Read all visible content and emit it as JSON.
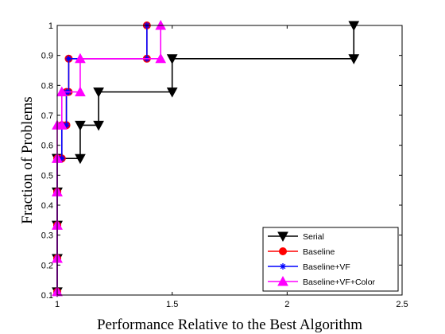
{
  "chart_data": {
    "type": "line",
    "title": "",
    "xlabel": "Performance Relative to the Best Algorithm",
    "ylabel": "Fraction of Problems",
    "xlim": [
      1,
      2.5
    ],
    "ylim": [
      0.1,
      1
    ],
    "xticks": [
      1,
      1.5,
      2,
      2.5
    ],
    "xtick_labels": [
      "1",
      "1.5",
      "2",
      "2.5"
    ],
    "yticks": [
      0.1,
      0.2,
      0.3,
      0.4,
      0.5,
      0.6,
      0.7,
      0.8,
      0.9,
      1
    ],
    "ytick_labels": [
      "0.1",
      "0.2",
      "0.3",
      "0.4",
      "0.5",
      "0.6",
      "0.7",
      "0.8",
      "0.9",
      "1"
    ],
    "grid": false,
    "legend_position": "bottom-right",
    "series": [
      {
        "name": "Serial",
        "color": "#000000",
        "marker": "triangle-down",
        "x": [
          1.0,
          1.0,
          1.0,
          1.0,
          1.0,
          1.0,
          1.0,
          1.0,
          1.0,
          1.0,
          1.1,
          1.1,
          1.18,
          1.18,
          1.5,
          1.5,
          2.29,
          2.29
        ],
        "y": [
          0.111,
          0.222,
          0.222,
          0.333,
          0.333,
          0.444,
          0.444,
          0.556,
          0.556,
          0.556,
          0.556,
          0.667,
          0.667,
          0.778,
          0.778,
          0.889,
          0.889,
          1.0
        ]
      },
      {
        "name": "Baseline",
        "color": "#ff0000",
        "marker": "circle",
        "x": [
          1.0,
          1.0,
          1.0,
          1.0,
          1.0,
          1.0,
          1.0,
          1.0,
          1.02,
          1.02,
          1.04,
          1.04,
          1.05,
          1.05,
          1.39,
          1.39
        ],
        "y": [
          0.111,
          0.222,
          0.222,
          0.333,
          0.333,
          0.444,
          0.444,
          0.556,
          0.556,
          0.667,
          0.667,
          0.778,
          0.778,
          0.889,
          0.889,
          1.0
        ]
      },
      {
        "name": "Baseline+VF",
        "color": "#0000ff",
        "marker": "asterisk",
        "x": [
          1.0,
          1.0,
          1.0,
          1.0,
          1.0,
          1.0,
          1.0,
          1.0,
          1.02,
          1.02,
          1.04,
          1.04,
          1.05,
          1.05,
          1.39,
          1.39
        ],
        "y": [
          0.111,
          0.222,
          0.222,
          0.333,
          0.333,
          0.444,
          0.444,
          0.556,
          0.556,
          0.667,
          0.667,
          0.778,
          0.778,
          0.889,
          0.889,
          1.0
        ]
      },
      {
        "name": "Baseline+VF+Color",
        "color": "#ff00ff",
        "marker": "triangle-up",
        "x": [
          1.0,
          1.0,
          1.0,
          1.0,
          1.0,
          1.0,
          1.0,
          1.0,
          1.0,
          1.0,
          1.02,
          1.02,
          1.1,
          1.1,
          1.45,
          1.45
        ],
        "y": [
          0.111,
          0.222,
          0.222,
          0.333,
          0.333,
          0.444,
          0.444,
          0.556,
          0.556,
          0.667,
          0.667,
          0.778,
          0.778,
          0.889,
          0.889,
          1.0
        ]
      }
    ]
  }
}
